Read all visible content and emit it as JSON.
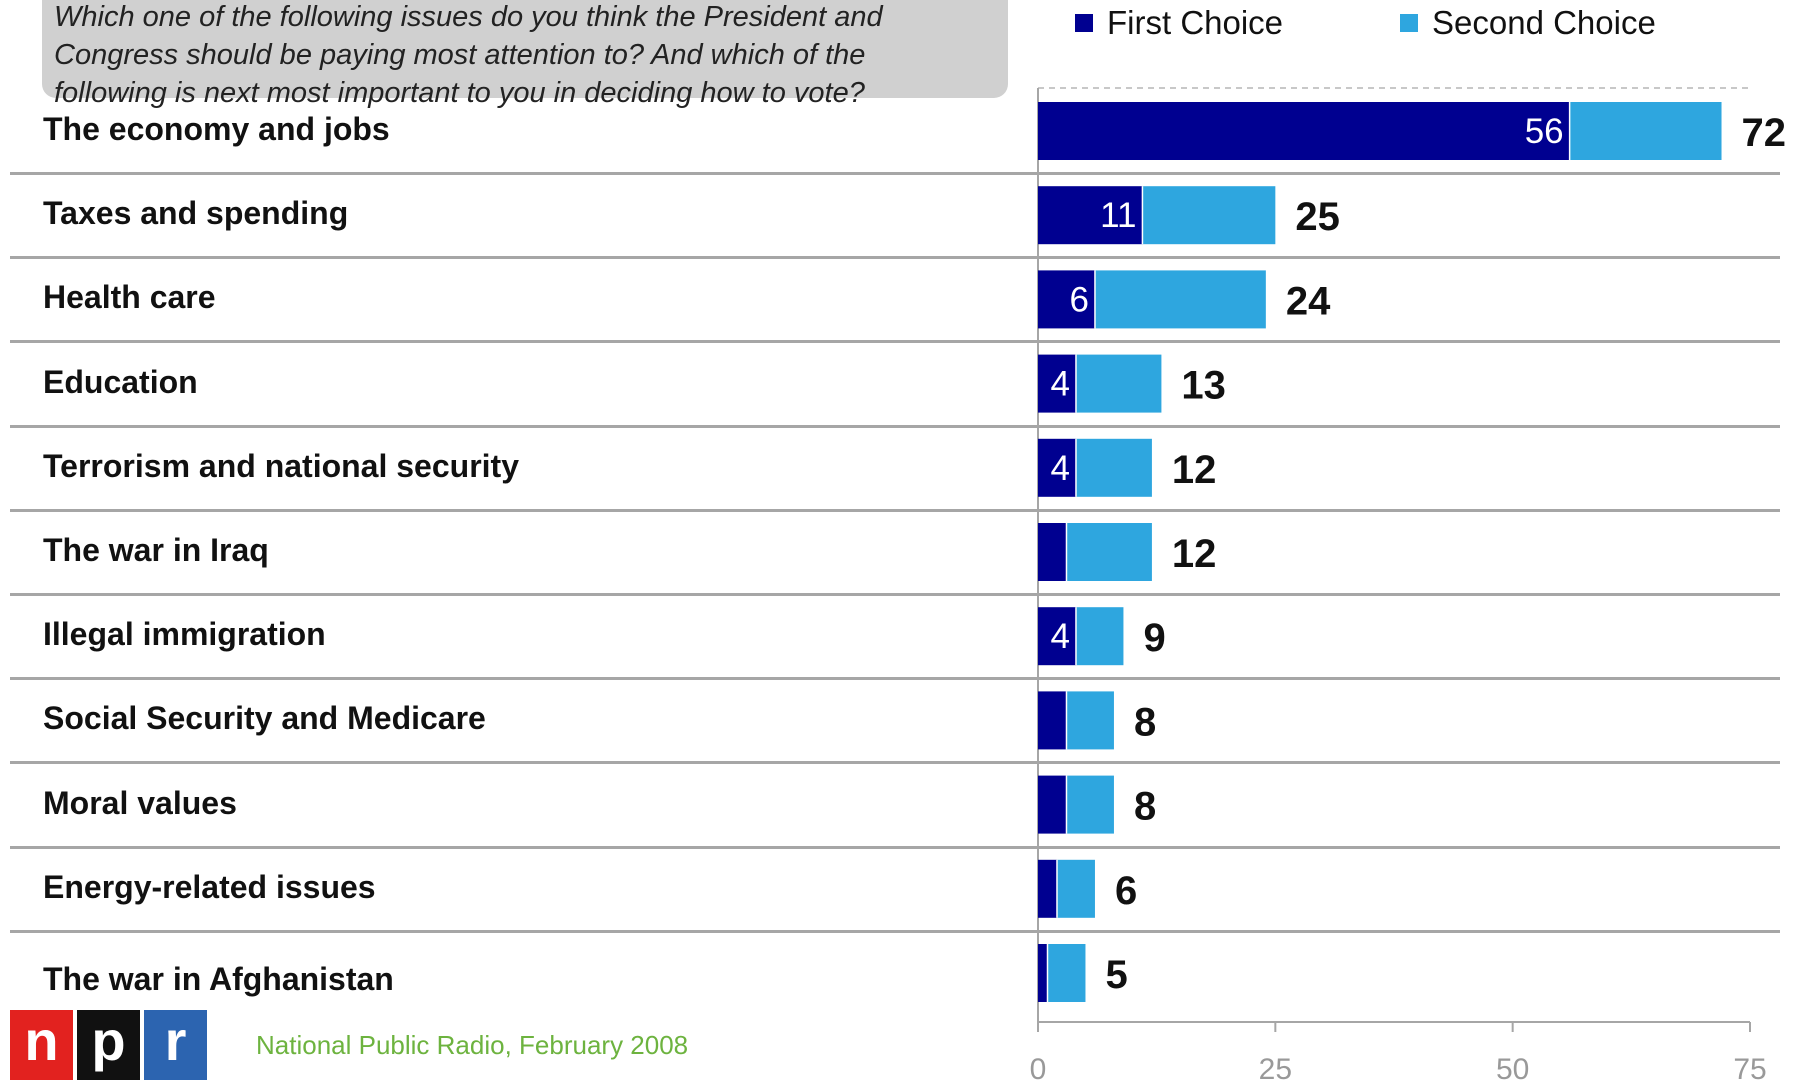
{
  "chart_data": {
    "type": "bar",
    "orientation": "horizontal",
    "stacked": true,
    "title_lines": [
      "Which one of the following issues do you think the President and",
      "Congress should be paying most attention to? And which of the",
      "following is next most important to you in deciding how to vote?"
    ],
    "categories": [
      "The economy and jobs",
      "Taxes and spending",
      "Health care",
      "Education",
      "Terrorism and national security",
      "The war in Iraq",
      "Illegal immigration",
      "Social Security and Medicare",
      "Moral values",
      "Energy-related issues",
      "The war in Afghanistan"
    ],
    "series": [
      {
        "name": "First Choice",
        "color": "#000090",
        "values": [
          56,
          11,
          6,
          4,
          4,
          3,
          4,
          3,
          3,
          2,
          1
        ],
        "labels": [
          "56",
          "11",
          "6",
          "4",
          "4",
          "",
          "4",
          "",
          "",
          "",
          ""
        ]
      },
      {
        "name": "Second Choice",
        "color": "#2ea6df",
        "values": [
          16,
          14,
          18,
          9,
          8,
          9,
          5,
          5,
          5,
          4,
          4
        ]
      }
    ],
    "totals": [
      "72",
      "25",
      "24",
      "13",
      "12",
      "12",
      "9",
      "8",
      "8",
      "6",
      "5"
    ],
    "xlim": [
      0,
      75
    ],
    "xticks": [
      "0",
      "25",
      "50",
      "75"
    ],
    "grid": true,
    "legend_position": "top"
  },
  "source": "National Public Radio, February 2008",
  "logo": {
    "letters": [
      "n",
      "p",
      "r"
    ],
    "colors": [
      "#e2221f",
      "#111111",
      "#2c64b0"
    ]
  }
}
